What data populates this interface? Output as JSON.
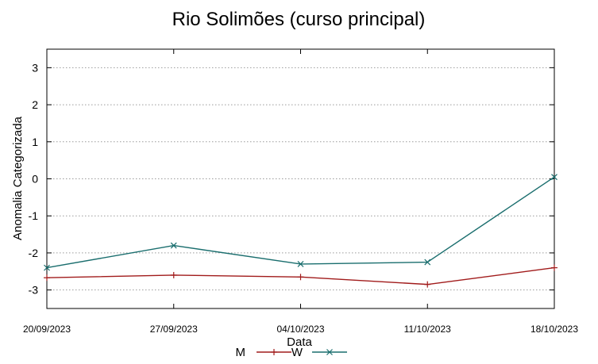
{
  "chart_data": {
    "type": "line",
    "title": "Rio Solimões (curso principal)",
    "xlabel": "Data",
    "ylabel": "Anomalia Categorizada",
    "categories": [
      "20/09/2023",
      "27/09/2023",
      "04/10/2023",
      "11/10/2023",
      "18/10/2023"
    ],
    "ylim": [
      -3.5,
      3.5
    ],
    "yticks": [
      3,
      2,
      1,
      0,
      -1,
      -2,
      -3
    ],
    "grid": true,
    "legend_position": "bottom",
    "series": [
      {
        "name": "M",
        "color": "#a11b1b",
        "values": [
          -2.67,
          -2.6,
          -2.65,
          -2.85,
          -2.4
        ]
      },
      {
        "name": "W",
        "color": "#1a6e6e",
        "values": [
          -2.4,
          -1.8,
          -2.3,
          -2.25,
          0.05
        ]
      }
    ]
  }
}
